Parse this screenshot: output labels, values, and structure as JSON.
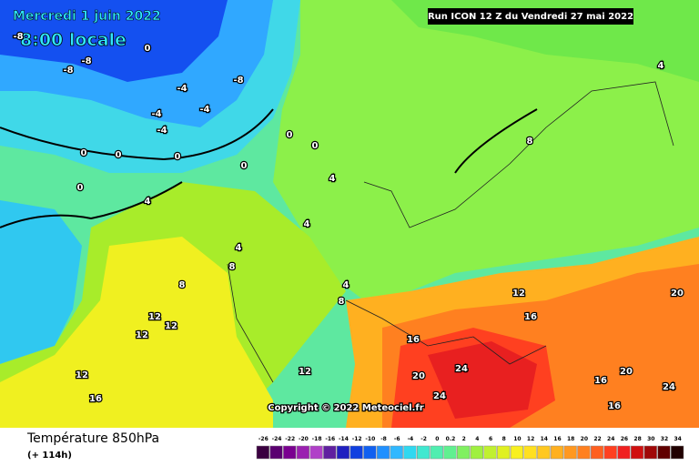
{
  "header": {
    "date": "Mercredi 1 juin 2022",
    "time": "8:00 locale",
    "run": "Run ICON 12 Z du Vendredi 27 mai 2022"
  },
  "copyright": "Copyright © 2022 Meteociel.fr",
  "footer": {
    "title": "Température 850hPa",
    "lead": "(+ 114h)"
  },
  "legend": {
    "labels": [
      "-26",
      "-24",
      "-22",
      "-20",
      "-18",
      "-16",
      "-14",
      "-12",
      "-10",
      "-8",
      "-6",
      "-4",
      "-2",
      "0",
      "0.2",
      "2",
      "4",
      "6",
      "8",
      "10",
      "12",
      "14",
      "16",
      "18",
      "20",
      "22",
      "24",
      "26",
      "28",
      "30",
      "32",
      "34"
    ]
  },
  "map_labels": [
    "-8",
    "-8",
    "-8",
    "-8",
    "-4",
    "-4",
    "-4",
    "-4",
    "0",
    "0",
    "0",
    "0",
    "0",
    "0",
    "0",
    "0",
    "4",
    "4",
    "4",
    "4",
    "4",
    "8",
    "8",
    "8",
    "8",
    "12",
    "12",
    "12",
    "12",
    "12",
    "16",
    "16",
    "16",
    "16",
    "20",
    "20",
    "20",
    "24",
    "24",
    "24",
    "4",
    "16",
    "12"
  ]
}
